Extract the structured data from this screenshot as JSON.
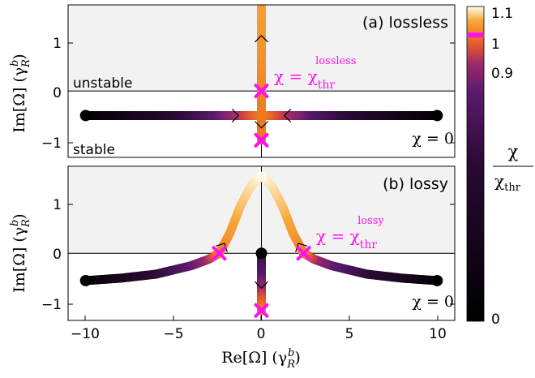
{
  "chart_data": [
    {
      "type": "line",
      "panel_label": "(a) lossless",
      "ylim": [
        -1.35,
        1.75
      ],
      "xlim": [
        -11,
        11
      ],
      "y_ticks": [
        "1",
        "0",
        "−1"
      ],
      "region_labels": {
        "upper": "unstable",
        "lower": "stable"
      },
      "annotation_threshold_prefix": "χ = χ",
      "annotation_threshold_sub": "thr",
      "annotation_threshold_sup": "lossless",
      "annotation_start": "χ = 0",
      "start_points": [
        [
          -10,
          -0.5
        ],
        [
          10,
          -0.5
        ]
      ],
      "threshold_points": [
        [
          0,
          0
        ],
        [
          0,
          -1
        ]
      ],
      "series": [
        {
          "x": [
            -10,
            -5,
            -2,
            -0.6,
            -0.15,
            0
          ],
          "y": [
            -0.5,
            -0.5,
            -0.5,
            -0.5,
            -0.5,
            -0.5
          ],
          "chi": [
            0,
            0.5,
            0.85,
            0.96,
            0.99,
            1.0
          ]
        },
        {
          "x": [
            10,
            5,
            2,
            0.6,
            0.15,
            0
          ],
          "y": [
            -0.5,
            -0.5,
            -0.5,
            -0.5,
            -0.5,
            -0.5
          ],
          "chi": [
            0,
            0.5,
            0.85,
            0.96,
            0.99,
            1.0
          ]
        },
        {
          "x": [
            0,
            0,
            0
          ],
          "y": [
            -0.5,
            0.5,
            1.75
          ],
          "chi": [
            1.0,
            1.02,
            1.04
          ]
        },
        {
          "x": [
            0,
            0
          ],
          "y": [
            -0.5,
            -1.0
          ],
          "chi": [
            1.0,
            1.0
          ]
        }
      ]
    },
    {
      "type": "line",
      "panel_label": "(b) lossy",
      "ylim": [
        -1.35,
        1.75
      ],
      "xlim": [
        -11,
        11
      ],
      "x_ticks": [
        "−10",
        "−5",
        "0",
        "5",
        "10"
      ],
      "y_ticks": [
        "1",
        "0",
        "−1"
      ],
      "xlabel": "Re[Ω] (γ",
      "xlabel_sub": "R",
      "xlabel_sup": "b",
      "annotation_threshold_prefix": "χ = χ",
      "annotation_threshold_sub": "thr",
      "annotation_threshold_sup": "lossy",
      "annotation_start": "χ = 0",
      "start_points": [
        [
          -10,
          -0.55
        ],
        [
          10,
          -0.55
        ],
        [
          0,
          0
        ]
      ],
      "threshold_points": [
        [
          -2.4,
          0
        ],
        [
          2.4,
          0
        ],
        [
          0,
          -1.15
        ]
      ],
      "series": [
        {
          "x": [
            -10,
            -8,
            -6,
            -4,
            -3,
            -2.4,
            -1.8,
            -1.2,
            -0.6,
            -0.2,
            0
          ],
          "y": [
            -0.55,
            -0.5,
            -0.42,
            -0.25,
            -0.12,
            0,
            0.4,
            0.95,
            1.35,
            1.5,
            1.55
          ],
          "chi": [
            0,
            0.3,
            0.55,
            0.8,
            0.9,
            1.0,
            1.03,
            1.06,
            1.08,
            1.09,
            1.1
          ]
        },
        {
          "x": [
            10,
            8,
            6,
            4,
            3,
            2.4,
            1.8,
            1.2,
            0.6,
            0.2,
            0
          ],
          "y": [
            -0.55,
            -0.5,
            -0.42,
            -0.25,
            -0.12,
            0,
            0.4,
            0.95,
            1.35,
            1.5,
            1.55
          ],
          "chi": [
            0,
            0.3,
            0.55,
            0.8,
            0.9,
            1.0,
            1.03,
            1.06,
            1.08,
            1.09,
            1.1
          ]
        },
        {
          "x": [
            0,
            0,
            0,
            0
          ],
          "y": [
            0,
            -0.5,
            -0.9,
            -1.15
          ],
          "chi": [
            0.6,
            0.8,
            0.95,
            1.0
          ]
        }
      ]
    }
  ],
  "ylabel": "Im[Ω] (γ",
  "ylabel_sub": "R",
  "ylabel_sup": "b",
  "colorbar": {
    "min": 0,
    "max": 1.1,
    "tick_labels": [
      "1.1",
      "1",
      "0.9",
      "0"
    ],
    "marker_value": 1.0,
    "marker_color": "#ff10f0",
    "label_num": "χ",
    "label_den": "χ",
    "label_den_sub": "thr",
    "stops": [
      {
        "v": 0.0,
        "c": "#000000"
      },
      {
        "v": 0.55,
        "c": "#2a0a35"
      },
      {
        "v": 0.8,
        "c": "#5b1a6e"
      },
      {
        "v": 0.9,
        "c": "#9b2a6c"
      },
      {
        "v": 0.95,
        "c": "#d74a3a"
      },
      {
        "v": 1.0,
        "c": "#ee7a20"
      },
      {
        "v": 1.05,
        "c": "#f7a83a"
      },
      {
        "v": 1.1,
        "c": "#fffbe8"
      }
    ]
  }
}
